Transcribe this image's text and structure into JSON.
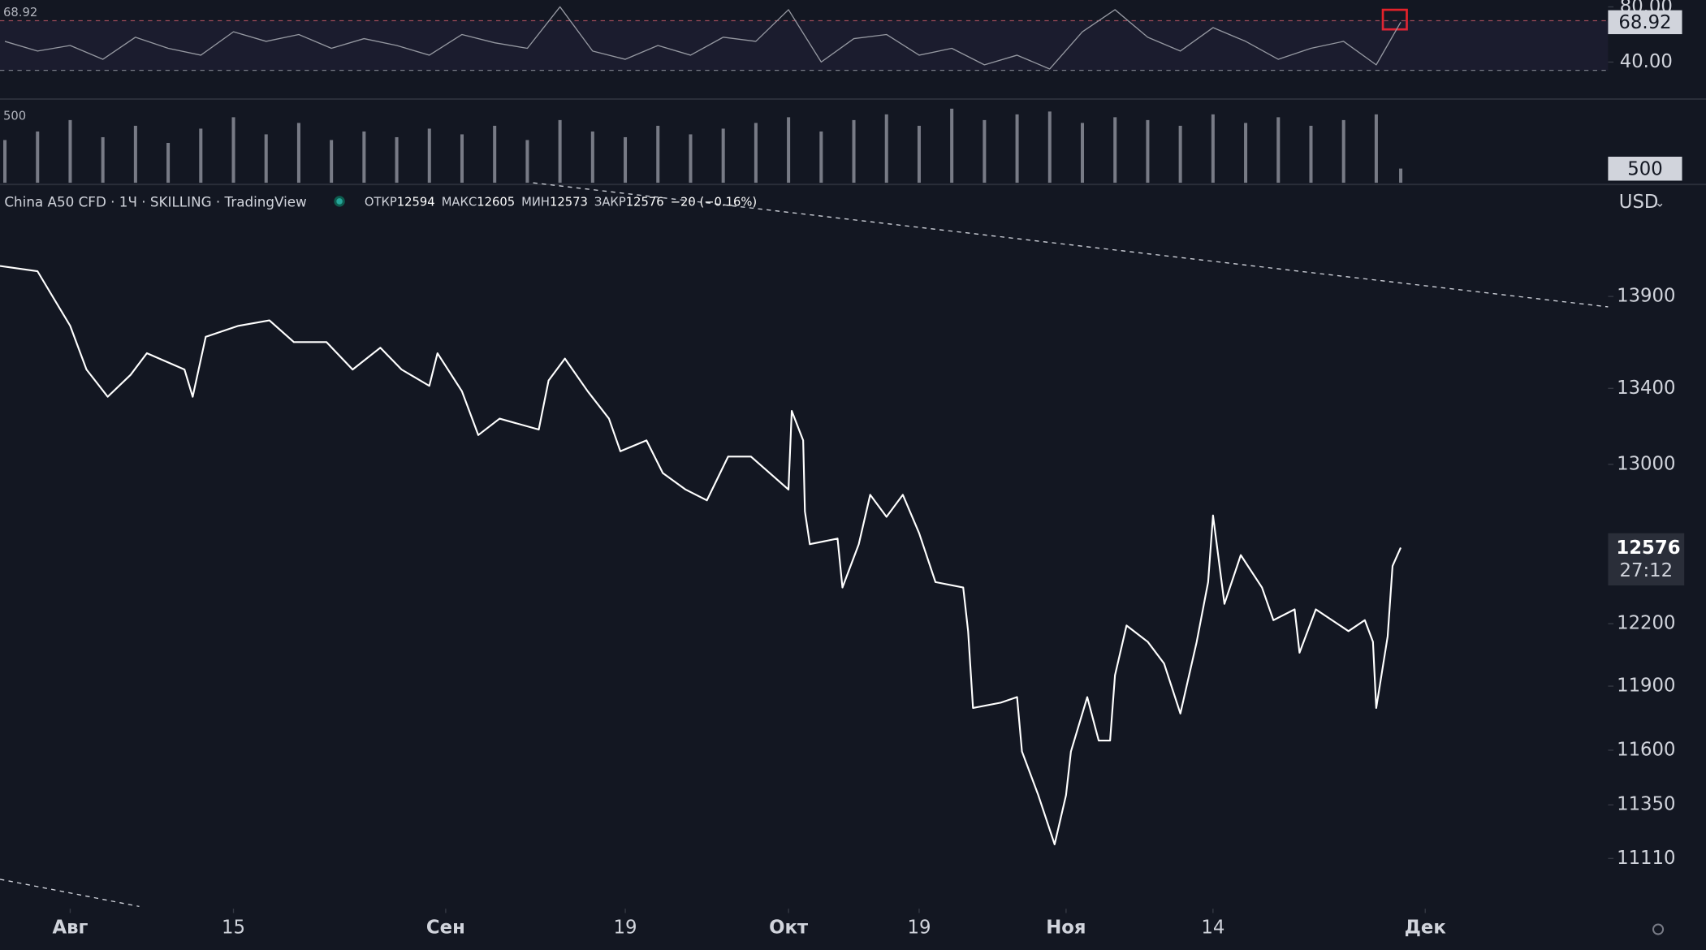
{
  "header": {
    "symbol": "China A50 CFD · 1Ч · SKILLING · TradingView",
    "ohlc": [
      {
        "label": "ОТКР",
        "value": 12594
      },
      {
        "label": "МАКС",
        "value": 12605
      },
      {
        "label": "МИН",
        "value": 12573
      },
      {
        "label": "ЗАКР",
        "value": 12576
      }
    ],
    "change": "−20 (−0.16%)",
    "currency": "USD",
    "countdown": "27:12"
  },
  "chart_data": [
    {
      "type": "line",
      "color": "#9598a1",
      "x": [
        -4,
        -2,
        0,
        2,
        4,
        6,
        8,
        10,
        12,
        14,
        16,
        18,
        20,
        22,
        24,
        26,
        28,
        30,
        32,
        34,
        36,
        38,
        40,
        42,
        44,
        46,
        48,
        50,
        52,
        54,
        56,
        58,
        60,
        62,
        64,
        66,
        68,
        70,
        72,
        74,
        76,
        78,
        80,
        81.5
      ],
      "values": [
        55,
        48,
        52,
        42,
        58,
        50,
        45,
        62,
        55,
        60,
        50,
        57,
        52,
        45,
        60,
        54,
        50,
        80,
        48,
        42,
        52,
        45,
        58,
        55,
        78,
        40,
        57,
        60,
        45,
        50,
        38,
        45,
        35,
        62,
        78,
        58,
        48,
        65,
        55,
        42,
        50,
        55,
        38,
        68.92
      ],
      "xlim": [
        -4.3,
        94.2
      ],
      "ylim": [
        14,
        85
      ],
      "yticks": [
        {
          "value": 80,
          "label": "80.00"
        },
        {
          "value": 40,
          "label": "40.00"
        }
      ],
      "bands": [
        70,
        34
      ]
    },
    {
      "type": "bar",
      "color": "#787b86",
      "x": [
        -4,
        -2,
        0,
        2,
        4,
        6,
        8,
        10,
        12,
        14,
        16,
        18,
        20,
        22,
        24,
        26,
        28,
        30,
        32,
        34,
        36,
        38,
        40,
        42,
        44,
        46,
        48,
        50,
        52,
        54,
        56,
        58,
        60,
        62,
        64,
        66,
        68,
        70,
        72,
        74,
        76,
        78,
        80,
        81.5
      ],
      "values": [
        1500,
        1800,
        2200,
        1600,
        2000,
        1400,
        1900,
        2300,
        1700,
        2100,
        1500,
        1800,
        1600,
        1900,
        1700,
        2000,
        1500,
        2200,
        1800,
        1600,
        2000,
        1700,
        1900,
        2100,
        2300,
        1800,
        2200,
        2400,
        2000,
        2600,
        2200,
        2400,
        2500,
        2100,
        2300,
        2200,
        2000,
        2400,
        2100,
        2300,
        2000,
        2200,
        2400,
        500
      ],
      "xlim": [
        -4.3,
        94.2
      ],
      "ylim": [
        0,
        2900
      ]
    },
    {
      "type": "line",
      "color": "#ffffff",
      "log_scale": true,
      "x": [
        -4.3,
        -2,
        -1,
        0,
        1,
        2.3,
        3.7,
        4.7,
        7,
        7.5,
        8.3,
        10.3,
        12.2,
        13.7,
        15.7,
        17.3,
        19,
        20.3,
        22,
        22.5,
        24,
        25,
        26.3,
        28.7,
        29.3,
        30.3,
        31.7,
        33,
        33.7,
        35.3,
        36.3,
        37.7,
        39,
        40.3,
        41.7,
        44,
        44.2,
        44.9,
        45,
        45.3,
        47,
        47.3,
        48.3,
        49,
        50,
        51,
        52,
        53,
        54.7,
        55,
        55.3,
        57,
        58,
        58.3,
        59.3,
        60.3,
        61,
        61.3,
        62.3,
        63,
        63.7,
        64,
        64.7,
        66,
        67,
        68,
        69,
        69.7,
        70,
        70.7,
        71.7,
        73,
        73.7,
        75,
        75.3,
        76.3,
        78.3,
        79.3,
        79.8,
        80,
        80.7,
        81,
        81.5
      ],
      "values": [
        14070,
        14040,
        13888,
        13738,
        13501,
        13355,
        13472,
        13589,
        13501,
        13355,
        13678,
        13738,
        13768,
        13649,
        13649,
        13501,
        13619,
        13501,
        13413,
        13589,
        13384,
        13153,
        13239,
        13182,
        13442,
        13560,
        13384,
        13239,
        13068,
        13125,
        12955,
        12870,
        12815,
        13040,
        13040,
        12870,
        13280,
        13125,
        12759,
        12593,
        12621,
        12377,
        12593,
        12843,
        12731,
        12843,
        12648,
        12404,
        12377,
        12164,
        11797,
        11822,
        11848,
        11594,
        11394,
        11173,
        11394,
        11594,
        11848,
        11645,
        11645,
        11952,
        12191,
        12112,
        12008,
        11771,
        12112,
        12404,
        12738,
        12297,
        12538,
        12377,
        12217,
        12270,
        12060,
        12270,
        12164,
        12217,
        12112,
        11797,
        12138,
        12484,
        12576
      ],
      "xlim": [
        -4.3,
        94.2
      ],
      "ylim": [
        10890,
        14500
      ],
      "yticks": [
        13900,
        13400,
        13000,
        12200,
        11900,
        11600,
        11350,
        11110
      ],
      "xticks": [
        {
          "value": 0,
          "label": "Авг"
        },
        {
          "value": 10,
          "label": "15"
        },
        {
          "value": 23,
          "label": "Сен"
        },
        {
          "value": 34,
          "label": "19"
        },
        {
          "value": 44,
          "label": "Окт"
        },
        {
          "value": 52,
          "label": "19"
        },
        {
          "value": 61,
          "label": "Ноя"
        },
        {
          "value": 70,
          "label": "14"
        },
        {
          "value": 83,
          "label": "Дек"
        }
      ]
    }
  ]
}
